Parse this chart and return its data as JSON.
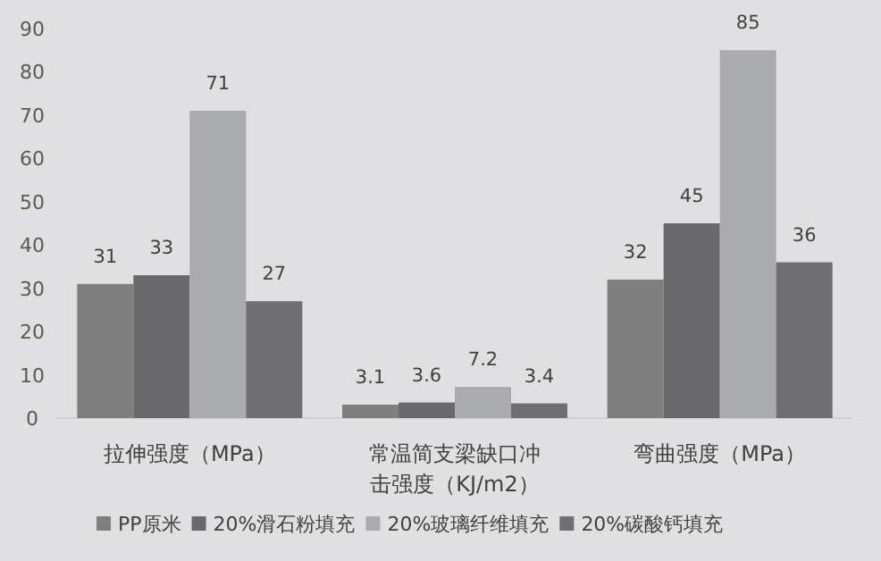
{
  "chart_data": {
    "type": "bar",
    "categories": [
      "拉伸强度（MPa）",
      "常温简支梁缺口冲击强度（KJ/m2）",
      "弯曲强度（MPa）"
    ],
    "series": [
      {
        "name": "PP原米",
        "color": "#7f7f80",
        "values": [
          31,
          3.1,
          32
        ]
      },
      {
        "name": "20%滑石粉填充",
        "color": "#69696b",
        "values": [
          33,
          3.6,
          45
        ]
      },
      {
        "name": "20%玻璃纤维填充",
        "color": "#aaabad",
        "values": [
          71,
          7.2,
          85
        ]
      },
      {
        "name": "20%碳酸钙填充",
        "color": "#6f6f71",
        "values": [
          27,
          3.4,
          36
        ]
      }
    ],
    "ylim": [
      0,
      90
    ],
    "yticks": [
      0,
      10,
      20,
      30,
      40,
      50,
      60,
      70,
      80,
      90
    ],
    "grid": false,
    "legend": "bottom",
    "data_labels": true
  }
}
